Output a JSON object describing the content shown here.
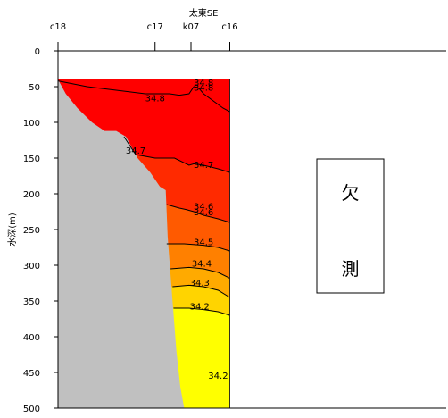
{
  "chart_data": {
    "type": "heatmap",
    "title": "",
    "xlabel": "",
    "ylabel": "水深(m)",
    "ylim": [
      0,
      500
    ],
    "yticks": [
      0,
      50,
      100,
      150,
      200,
      250,
      300,
      350,
      400,
      450,
      500
    ],
    "stations": [
      {
        "name": "c18",
        "x": 0
      },
      {
        "name": "c17",
        "x": 100
      },
      {
        "name": "k07",
        "x": 137
      },
      {
        "name": "c16",
        "x": 177
      }
    ],
    "section_label": "太東SE",
    "bottom_profile": [
      {
        "x": 0,
        "depth": 40
      },
      {
        "x": 8,
        "depth": 60
      },
      {
        "x": 20,
        "depth": 80
      },
      {
        "x": 35,
        "depth": 100
      },
      {
        "x": 48,
        "depth": 112
      },
      {
        "x": 60,
        "depth": 112
      },
      {
        "x": 70,
        "depth": 120
      },
      {
        "x": 82,
        "depth": 150
      },
      {
        "x": 95,
        "depth": 170
      },
      {
        "x": 105,
        "depth": 190
      },
      {
        "x": 111,
        "depth": 195
      },
      {
        "x": 113,
        "depth": 260
      },
      {
        "x": 118,
        "depth": 350
      },
      {
        "x": 122,
        "depth": 420
      },
      {
        "x": 126,
        "depth": 470
      },
      {
        "x": 130,
        "depth": 500
      }
    ],
    "data_extent": {
      "x_start": 0,
      "x_end": 177,
      "depth_top": 40,
      "depth_bottom": 500
    },
    "bands": [
      {
        "min": 34.8,
        "max": 35.0,
        "color": "#ff0000"
      },
      {
        "min": 34.7,
        "max": 34.8,
        "color": "#ff0000"
      },
      {
        "min": 34.6,
        "max": 34.7,
        "color": "#ff2a00"
      },
      {
        "min": 34.5,
        "max": 34.6,
        "color": "#ff5a00"
      },
      {
        "min": 34.4,
        "max": 34.5,
        "color": "#ff8000"
      },
      {
        "min": 34.3,
        "max": 34.4,
        "color": "#ffaa00"
      },
      {
        "min": 34.2,
        "max": 34.3,
        "color": "#ffd400"
      },
      {
        "min": 34.0,
        "max": 34.2,
        "color": "#ffff00"
      }
    ],
    "contours": [
      {
        "level": 34.8,
        "labels": [
          "34.8",
          "34.8",
          "34.8"
        ],
        "points": [
          [
            0,
            42
          ],
          [
            30,
            50
          ],
          [
            60,
            55
          ],
          [
            90,
            60
          ],
          [
            115,
            60
          ],
          [
            125,
            62
          ],
          [
            135,
            60
          ],
          [
            140,
            50
          ],
          [
            145,
            52
          ],
          [
            150,
            60
          ],
          [
            160,
            70
          ],
          [
            170,
            80
          ],
          [
            177,
            85
          ]
        ]
      },
      {
        "level": 34.7,
        "labels": [
          "34.7",
          "34.7"
        ],
        "points": [
          [
            68,
            120
          ],
          [
            80,
            145
          ],
          [
            100,
            150
          ],
          [
            120,
            150
          ],
          [
            135,
            160
          ],
          [
            140,
            158
          ],
          [
            150,
            160
          ],
          [
            165,
            165
          ],
          [
            177,
            170
          ]
        ]
      },
      {
        "level": 34.6,
        "labels": [
          "34.6",
          "34.6"
        ],
        "points": [
          [
            112,
            215
          ],
          [
            125,
            220
          ],
          [
            132,
            222
          ],
          [
            140,
            225
          ],
          [
            150,
            230
          ],
          [
            165,
            235
          ],
          [
            177,
            240
          ]
        ]
      },
      {
        "level": 34.5,
        "labels": [
          "34.5"
        ],
        "points": [
          [
            112,
            270
          ],
          [
            130,
            270
          ],
          [
            150,
            272
          ],
          [
            165,
            275
          ],
          [
            177,
            280
          ]
        ]
      },
      {
        "level": 34.4,
        "labels": [
          "34.4"
        ],
        "points": [
          [
            116,
            305
          ],
          [
            135,
            303
          ],
          [
            150,
            305
          ],
          [
            165,
            310
          ],
          [
            177,
            318
          ]
        ]
      },
      {
        "level": 34.3,
        "labels": [
          "34.3"
        ],
        "points": [
          [
            118,
            330
          ],
          [
            135,
            328
          ],
          [
            150,
            330
          ],
          [
            165,
            335
          ],
          [
            177,
            345
          ]
        ]
      },
      {
        "level": 34.2,
        "labels": [
          "34.2",
          "34.2"
        ],
        "points": [
          [
            119,
            360
          ],
          [
            135,
            360
          ],
          [
            150,
            362
          ],
          [
            165,
            365
          ],
          [
            177,
            370
          ]
        ]
      }
    ],
    "contour_label_positions": [
      {
        "text": "34.8",
        "x": 100,
        "depth": 67
      },
      {
        "text": "34.8",
        "x": 150,
        "depth": 45
      },
      {
        "text": "34.8",
        "x": 150,
        "depth": 52
      },
      {
        "text": "34.7",
        "x": 80,
        "depth": 140
      },
      {
        "text": "34.7",
        "x": 150,
        "depth": 160
      },
      {
        "text": "34.6",
        "x": 150,
        "depth": 218
      },
      {
        "text": "34.6",
        "x": 150,
        "depth": 226
      },
      {
        "text": "34.5",
        "x": 150,
        "depth": 268
      },
      {
        "text": "34.4",
        "x": 148,
        "depth": 298
      },
      {
        "text": "34.3",
        "x": 146,
        "depth": 325
      },
      {
        "text": "34.2",
        "x": 146,
        "depth": 358
      },
      {
        "text": "34.2",
        "x": 165,
        "depth": 455
      }
    ],
    "missing_note": {
      "line1": "欠",
      "line2": "測"
    },
    "grid": false,
    "legend": "none"
  }
}
